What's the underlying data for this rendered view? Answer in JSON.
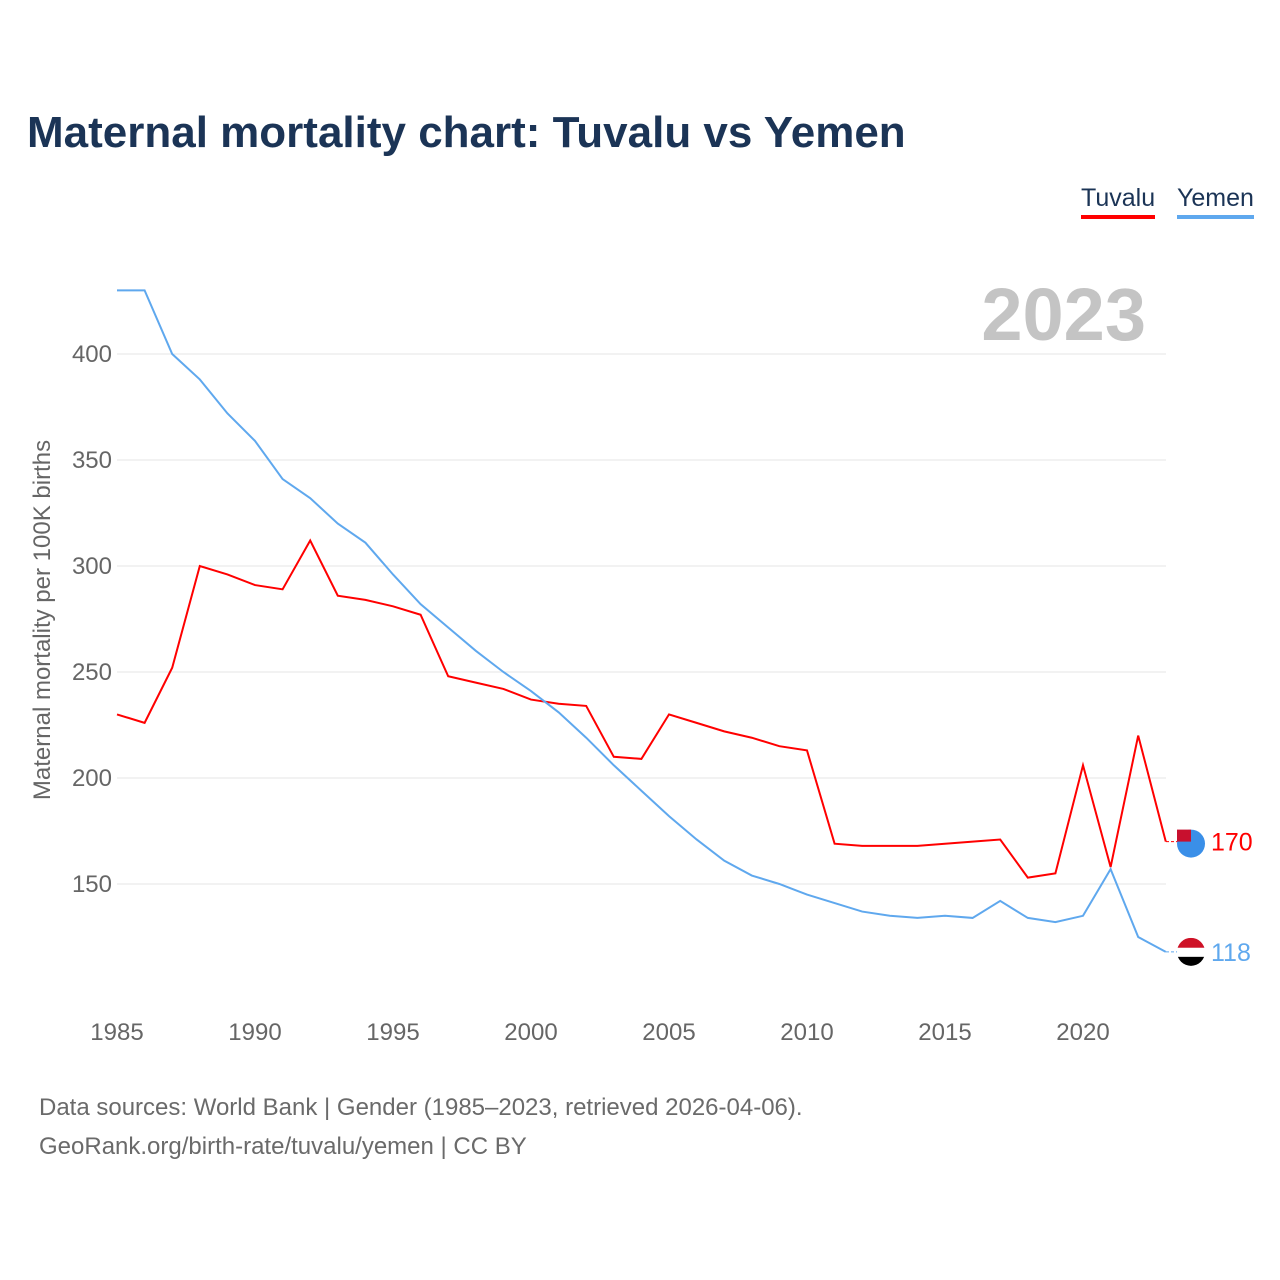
{
  "chart_data": {
    "type": "line",
    "title": "Maternal mortality chart: Tuvalu vs Yemen",
    "ylabel": "Maternal mortality per 100K births",
    "xlabel": "",
    "year_label": "2023",
    "xlim": [
      1985,
      2023
    ],
    "ylim": [
      100,
      430
    ],
    "xticks": [
      1985,
      1990,
      1995,
      2000,
      2005,
      2010,
      2015,
      2020
    ],
    "yticks": [
      150,
      200,
      250,
      300,
      350,
      400
    ],
    "grid": true,
    "legend_position": "top-right",
    "x": [
      1985,
      1986,
      1987,
      1988,
      1989,
      1990,
      1991,
      1992,
      1993,
      1994,
      1995,
      1996,
      1997,
      1998,
      1999,
      2000,
      2001,
      2002,
      2003,
      2004,
      2005,
      2006,
      2007,
      2008,
      2009,
      2010,
      2011,
      2012,
      2013,
      2014,
      2015,
      2016,
      2017,
      2018,
      2019,
      2020,
      2021,
      2022,
      2023
    ],
    "series": [
      {
        "name": "Tuvalu",
        "color": "#ff0000",
        "end_label": "170",
        "values": [
          230,
          226,
          252,
          300,
          296,
          291,
          289,
          312,
          286,
          284,
          281,
          277,
          248,
          245,
          242,
          237,
          235,
          234,
          210,
          209,
          230,
          226,
          222,
          219,
          215,
          213,
          169,
          168,
          168,
          168,
          169,
          170,
          171,
          153,
          155,
          206,
          158,
          220,
          170
        ]
      },
      {
        "name": "Yemen",
        "color": "#5fa8ee",
        "end_label": "118",
        "values": [
          430,
          430,
          400,
          388,
          372,
          359,
          341,
          332,
          320,
          311,
          296,
          282,
          271,
          260,
          250,
          241,
          231,
          219,
          206,
          194,
          182,
          171,
          161,
          154,
          150,
          145,
          141,
          137,
          135,
          134,
          135,
          134,
          142,
          134,
          132,
          135,
          157,
          125,
          118
        ]
      }
    ]
  },
  "source": {
    "line1": "Data sources: World Bank | Gender (1985–2023, retrieved 2026-04-06).",
    "line2": "GeoRank.org/birth-rate/tuvalu/yemen | CC BY"
  }
}
